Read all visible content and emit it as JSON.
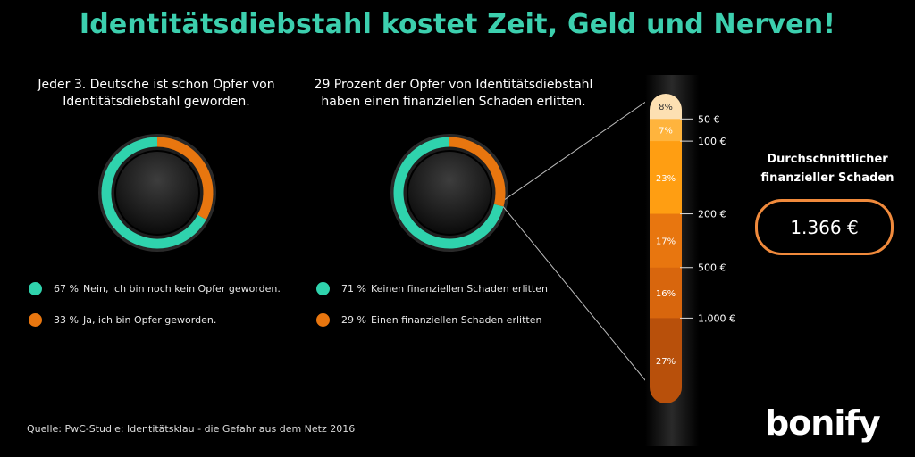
{
  "title": "Identitätsdiebstahl kostet Zeit, Geld und Nerven!",
  "colors": {
    "teal": "#2fd3ad",
    "orange": "#e8760f",
    "title": "#3ccfae",
    "box": "#f08a3c"
  },
  "left_panel": {
    "subtitle_lines": [
      "Jeder 3. Deutsche ist schon Opfer von",
      "Identitätsdiebstahl geworden."
    ],
    "legend": [
      {
        "pct": "67 %",
        "text": "Nein, ich bin noch kein Opfer geworden.",
        "color": "#2fd3ad"
      },
      {
        "pct": "33 %",
        "text": "Ja, ich bin Opfer geworden.",
        "color": "#e8760f"
      }
    ]
  },
  "middle_panel": {
    "subtitle_lines": [
      "29 Prozent der Opfer von Identitätsdiebstahl",
      "haben einen finanziellen Schaden erlitten."
    ],
    "legend": [
      {
        "pct": "71 %",
        "text": "Keinen finanziellen Schaden erlitten",
        "color": "#2fd3ad"
      },
      {
        "pct": "29 %",
        "text": "Einen finanziellen Schaden erlitten",
        "color": "#e8760f"
      }
    ]
  },
  "average": {
    "label_lines": [
      "Durchschnittlicher",
      "finanzieller Schaden"
    ],
    "value": "1.366 €"
  },
  "source": "Quelle: PwC-Studie: Identitätsklau - die Gefahr aus dem Netz 2016",
  "logo": "bonify",
  "chart_data": [
    {
      "type": "pie",
      "labels": [
        "Nein, ich bin noch kein Opfer geworden.",
        "Ja, ich bin Opfer geworden."
      ],
      "values": [
        67,
        33
      ],
      "colors": [
        "#2fd3ad",
        "#e8760f"
      ]
    },
    {
      "type": "pie",
      "labels": [
        "Keinen finanziellen Schaden erlitten",
        "Einen finanziellen Schaden erlitten"
      ],
      "values": [
        71,
        29
      ],
      "colors": [
        "#2fd3ad",
        "#e8760f"
      ]
    },
    {
      "type": "bar",
      "stacked": true,
      "segments": [
        {
          "label": "8%",
          "value": 8,
          "color": "#fde0b2"
        },
        {
          "label": "7%",
          "value": 7,
          "color": "#ffb43d"
        },
        {
          "label": "23%",
          "value": 23,
          "color": "#ff9e12"
        },
        {
          "label": "17%",
          "value": 17,
          "color": "#e8760f"
        },
        {
          "label": "16%",
          "value": 16,
          "color": "#d8660d"
        },
        {
          "label": "27%",
          "value": 27,
          "color": "#b8500b"
        }
      ],
      "thresholds": [
        "50 €",
        "100 €",
        "200 €",
        "500 €",
        "1.000 €"
      ]
    }
  ]
}
